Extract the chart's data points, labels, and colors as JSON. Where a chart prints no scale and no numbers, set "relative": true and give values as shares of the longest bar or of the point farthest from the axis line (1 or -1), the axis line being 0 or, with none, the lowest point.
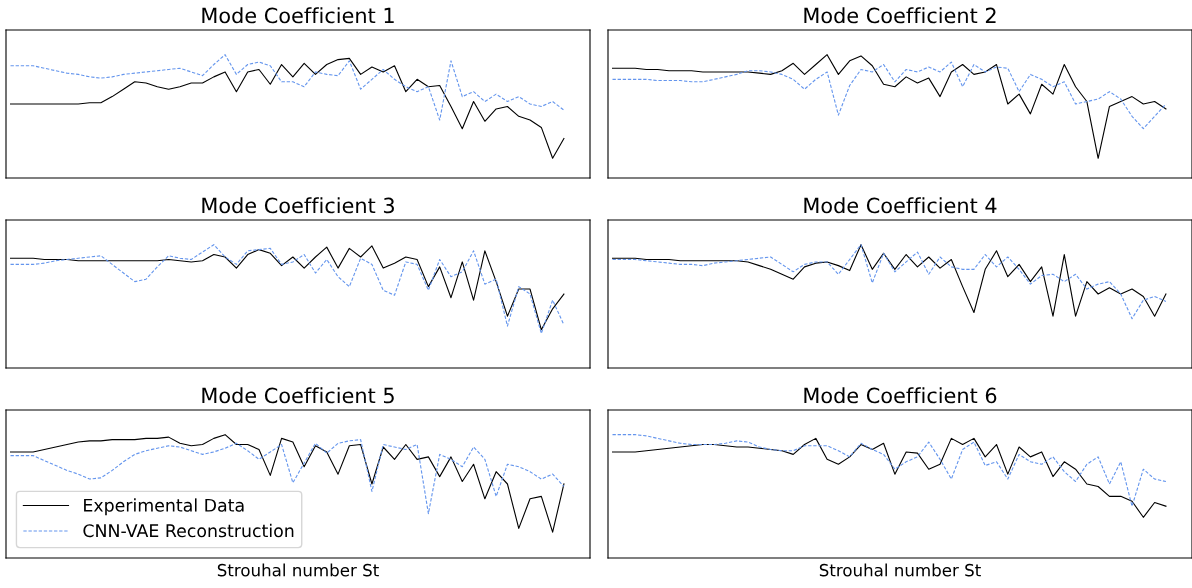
{
  "chart_data": [
    {
      "type": "line",
      "title": "Mode Coefficient 1",
      "relative": true,
      "tick_labels": false,
      "grid": false,
      "legend": false,
      "categories": [
        null,
        null,
        null,
        null,
        null,
        null,
        null,
        null,
        null,
        null,
        null,
        null,
        null,
        null,
        null,
        null,
        null,
        null,
        null,
        null,
        null,
        null,
        null,
        null,
        null,
        null,
        null,
        null,
        null,
        null,
        null,
        null,
        null,
        null,
        null,
        null,
        null,
        null,
        null,
        null,
        null,
        null,
        null,
        null,
        null,
        null,
        null,
        null,
        null,
        null
      ],
      "series": [
        {
          "color": "#000000",
          "line_style": "solid",
          "values": [
            0.6,
            0.6,
            0.6,
            0.6,
            0.6,
            0.6,
            0.6,
            0.61,
            0.61,
            0.66,
            0.72,
            0.78,
            0.77,
            0.74,
            0.72,
            0.74,
            0.77,
            0.77,
            0.82,
            0.86,
            0.7,
            0.86,
            0.88,
            0.76,
            0.92,
            0.82,
            0.93,
            0.84,
            0.92,
            0.96,
            0.97,
            0.84,
            0.9,
            0.86,
            0.91,
            0.7,
            0.8,
            0.74,
            0.75,
            0.58,
            0.4,
            0.62,
            0.46,
            0.56,
            0.58,
            0.5,
            0.47,
            0.41,
            0.16,
            0.32
          ]
        },
        {
          "color": "#6495ed",
          "line_style": "dashed",
          "values": [
            0.91,
            0.91,
            0.91,
            0.89,
            0.87,
            0.85,
            0.84,
            0.82,
            0.81,
            0.82,
            0.84,
            0.85,
            0.86,
            0.87,
            0.88,
            0.89,
            0.86,
            0.83,
            0.92,
            1.0,
            0.84,
            0.92,
            0.94,
            0.91,
            0.78,
            0.78,
            0.74,
            0.86,
            0.84,
            0.83,
            0.95,
            0.72,
            0.8,
            0.88,
            0.8,
            0.74,
            0.7,
            0.74,
            0.47,
            0.95,
            0.66,
            0.7,
            0.62,
            0.68,
            0.62,
            0.66,
            0.6,
            0.58,
            0.62,
            0.55
          ]
        }
      ]
    },
    {
      "type": "line",
      "title": "Mode Coefficient 2",
      "relative": true,
      "tick_labels": false,
      "grid": false,
      "legend": false,
      "categories": [
        null,
        null,
        null,
        null,
        null,
        null,
        null,
        null,
        null,
        null,
        null,
        null,
        null,
        null,
        null,
        null,
        null,
        null,
        null,
        null,
        null,
        null,
        null,
        null,
        null,
        null,
        null,
        null,
        null,
        null,
        null,
        null,
        null,
        null,
        null,
        null,
        null,
        null,
        null,
        null,
        null,
        null,
        null,
        null,
        null,
        null,
        null,
        null,
        null,
        null
      ],
      "series": [
        {
          "color": "#000000",
          "line_style": "solid",
          "values": [
            0.89,
            0.89,
            0.89,
            0.88,
            0.88,
            0.87,
            0.87,
            0.87,
            0.86,
            0.86,
            0.86,
            0.86,
            0.86,
            0.85,
            0.84,
            0.87,
            0.93,
            0.84,
            0.92,
            1.0,
            0.84,
            0.95,
            0.99,
            0.91,
            0.76,
            0.74,
            0.82,
            0.77,
            0.81,
            0.66,
            0.86,
            0.92,
            0.84,
            0.86,
            0.92,
            0.6,
            0.68,
            0.52,
            0.76,
            0.68,
            0.92,
            0.74,
            0.62,
            0.16,
            0.58,
            0.62,
            0.66,
            0.6,
            0.62,
            0.56
          ]
        },
        {
          "color": "#6495ed",
          "line_style": "dashed",
          "values": [
            0.8,
            0.8,
            0.8,
            0.8,
            0.79,
            0.79,
            0.79,
            0.78,
            0.78,
            0.8,
            0.82,
            0.84,
            0.87,
            0.87,
            0.86,
            0.84,
            0.8,
            0.72,
            0.8,
            0.86,
            0.51,
            0.75,
            0.88,
            0.86,
            0.92,
            0.78,
            0.88,
            0.86,
            0.9,
            0.86,
            0.94,
            0.74,
            0.92,
            0.86,
            0.9,
            0.89,
            0.7,
            0.84,
            0.8,
            0.74,
            0.78,
            0.6,
            0.62,
            0.64,
            0.7,
            0.64,
            0.5,
            0.4,
            0.5,
            0.6
          ]
        }
      ]
    },
    {
      "type": "line",
      "title": "Mode Coefficient 3",
      "relative": true,
      "tick_labels": false,
      "grid": false,
      "legend": false,
      "categories": [
        null,
        null,
        null,
        null,
        null,
        null,
        null,
        null,
        null,
        null,
        null,
        null,
        null,
        null,
        null,
        null,
        null,
        null,
        null,
        null,
        null,
        null,
        null,
        null,
        null,
        null,
        null,
        null,
        null,
        null,
        null,
        null,
        null,
        null,
        null,
        null,
        null,
        null,
        null,
        null,
        null,
        null,
        null,
        null,
        null,
        null,
        null,
        null,
        null,
        null
      ],
      "series": [
        {
          "color": "#000000",
          "line_style": "solid",
          "values": [
            0.89,
            0.89,
            0.89,
            0.88,
            0.88,
            0.88,
            0.87,
            0.87,
            0.87,
            0.87,
            0.87,
            0.87,
            0.87,
            0.87,
            0.88,
            0.87,
            0.86,
            0.87,
            0.92,
            0.9,
            0.81,
            0.92,
            0.96,
            0.93,
            0.83,
            0.9,
            0.81,
            0.9,
            0.98,
            0.81,
            0.97,
            0.9,
            0.99,
            0.81,
            0.85,
            0.9,
            0.88,
            0.66,
            0.82,
            0.57,
            0.86,
            0.55,
            0.95,
            0.7,
            0.42,
            0.64,
            0.64,
            0.31,
            0.48,
            0.6
          ]
        },
        {
          "color": "#6495ed",
          "line_style": "dashed",
          "values": [
            0.84,
            0.84,
            0.84,
            0.85,
            0.87,
            0.88,
            0.89,
            0.9,
            0.91,
            0.84,
            0.77,
            0.7,
            0.72,
            0.82,
            0.91,
            0.89,
            0.88,
            0.94,
            1.0,
            0.9,
            0.84,
            0.95,
            0.96,
            0.97,
            0.84,
            0.86,
            0.92,
            0.77,
            0.88,
            0.74,
            0.66,
            0.89,
            0.84,
            0.63,
            0.59,
            0.86,
            0.84,
            0.63,
            0.88,
            0.74,
            0.78,
            0.95,
            0.68,
            0.72,
            0.34,
            0.66,
            0.6,
            0.28,
            0.55,
            0.35
          ]
        }
      ]
    },
    {
      "type": "line",
      "title": "Mode Coefficient 4",
      "relative": true,
      "tick_labels": false,
      "grid": false,
      "legend": false,
      "categories": [
        null,
        null,
        null,
        null,
        null,
        null,
        null,
        null,
        null,
        null,
        null,
        null,
        null,
        null,
        null,
        null,
        null,
        null,
        null,
        null,
        null,
        null,
        null,
        null,
        null,
        null,
        null,
        null,
        null,
        null,
        null,
        null,
        null,
        null,
        null,
        null,
        null,
        null,
        null,
        null,
        null,
        null,
        null,
        null,
        null,
        null,
        null,
        null,
        null,
        null
      ],
      "series": [
        {
          "color": "#000000",
          "line_style": "solid",
          "values": [
            0.89,
            0.89,
            0.89,
            0.88,
            0.88,
            0.88,
            0.87,
            0.87,
            0.87,
            0.87,
            0.87,
            0.87,
            0.86,
            0.83,
            0.8,
            0.76,
            0.72,
            0.82,
            0.85,
            0.86,
            0.83,
            0.79,
            1.0,
            0.8,
            0.93,
            0.8,
            0.92,
            0.82,
            0.9,
            0.81,
            0.88,
            0.66,
            0.45,
            0.8,
            0.95,
            0.74,
            0.84,
            0.7,
            0.82,
            0.42,
            0.92,
            0.42,
            0.7,
            0.6,
            0.65,
            0.6,
            0.64,
            0.58,
            0.42,
            0.6
          ]
        },
        {
          "color": "#6495ed",
          "line_style": "dashed",
          "values": [
            0.88,
            0.88,
            0.88,
            0.87,
            0.86,
            0.85,
            0.84,
            0.84,
            0.83,
            0.85,
            0.86,
            0.87,
            0.88,
            0.89,
            0.9,
            0.84,
            0.78,
            0.84,
            0.86,
            0.86,
            0.76,
            0.88,
            1.0,
            0.69,
            0.93,
            0.78,
            0.86,
            0.94,
            0.76,
            0.9,
            0.82,
            0.8,
            0.8,
            0.92,
            0.82,
            0.9,
            0.8,
            0.68,
            0.75,
            0.76,
            0.7,
            0.76,
            0.64,
            0.68,
            0.7,
            0.6,
            0.4,
            0.55,
            0.58,
            0.54
          ]
        }
      ]
    },
    {
      "type": "line",
      "title": "Mode Coefficient 5",
      "xlabel": "Strouhal number St",
      "relative": true,
      "tick_labels": false,
      "grid": false,
      "legend": "bottom left",
      "categories": [
        null,
        null,
        null,
        null,
        null,
        null,
        null,
        null,
        null,
        null,
        null,
        null,
        null,
        null,
        null,
        null,
        null,
        null,
        null,
        null,
        null,
        null,
        null,
        null,
        null,
        null,
        null,
        null,
        null,
        null,
        null,
        null,
        null,
        null,
        null,
        null,
        null,
        null,
        null,
        null,
        null,
        null,
        null,
        null,
        null,
        null,
        null,
        null,
        null,
        null
      ],
      "series": [
        {
          "name": "Experimental Data",
          "color": "#000000",
          "line_style": "solid",
          "values": [
            0.86,
            0.86,
            0.86,
            0.88,
            0.9,
            0.92,
            0.94,
            0.95,
            0.95,
            0.96,
            0.96,
            0.96,
            0.97,
            0.97,
            0.98,
            0.93,
            0.91,
            0.92,
            0.97,
            1.0,
            0.92,
            0.92,
            0.88,
            0.67,
            0.97,
            0.94,
            0.74,
            0.91,
            0.86,
            0.68,
            0.91,
            0.92,
            0.6,
            0.9,
            0.8,
            0.92,
            0.8,
            0.82,
            0.66,
            0.82,
            0.62,
            0.76,
            0.48,
            0.7,
            0.6,
            0.24,
            0.48,
            0.5,
            0.21,
            0.6
          ]
        },
        {
          "name": "CNN-VAE Reconstruction",
          "color": "#6495ed",
          "line_style": "dashed",
          "values": [
            0.83,
            0.83,
            0.83,
            0.79,
            0.75,
            0.71,
            0.68,
            0.64,
            0.65,
            0.71,
            0.78,
            0.84,
            0.87,
            0.89,
            0.91,
            0.9,
            0.87,
            0.84,
            0.86,
            0.89,
            0.93,
            0.87,
            0.8,
            0.86,
            0.92,
            0.61,
            0.77,
            0.93,
            0.85,
            0.93,
            0.95,
            0.96,
            0.54,
            0.92,
            0.9,
            0.88,
            0.92,
            0.36,
            0.84,
            0.8,
            0.74,
            0.9,
            0.8,
            0.5,
            0.76,
            0.74,
            0.7,
            0.64,
            0.68,
            0.58
          ]
        }
      ]
    },
    {
      "type": "line",
      "title": "Mode Coefficient 6",
      "xlabel": "Strouhal number St",
      "relative": true,
      "tick_labels": false,
      "grid": false,
      "legend": false,
      "categories": [
        null,
        null,
        null,
        null,
        null,
        null,
        null,
        null,
        null,
        null,
        null,
        null,
        null,
        null,
        null,
        null,
        null,
        null,
        null,
        null,
        null,
        null,
        null,
        null,
        null,
        null,
        null,
        null,
        null,
        null,
        null,
        null,
        null,
        null,
        null,
        null,
        null,
        null,
        null,
        null,
        null,
        null,
        null,
        null,
        null,
        null,
        null,
        null,
        null,
        null
      ],
      "series": [
        {
          "color": "#000000",
          "line_style": "solid",
          "values": [
            0.86,
            0.86,
            0.86,
            0.87,
            0.88,
            0.89,
            0.9,
            0.91,
            0.92,
            0.92,
            0.91,
            0.9,
            0.9,
            0.89,
            0.88,
            0.87,
            0.84,
            0.92,
            0.97,
            0.8,
            0.76,
            0.82,
            0.92,
            0.88,
            0.93,
            0.68,
            0.86,
            0.85,
            0.72,
            0.76,
            0.97,
            0.92,
            0.97,
            0.82,
            0.92,
            0.68,
            0.9,
            0.82,
            0.86,
            0.66,
            0.78,
            0.72,
            0.6,
            0.58,
            0.5,
            0.5,
            0.46,
            0.33,
            0.45,
            0.42
          ]
        },
        {
          "color": "#6495ed",
          "line_style": "dashed",
          "values": [
            1.0,
            1.0,
            1.0,
            0.99,
            0.97,
            0.95,
            0.93,
            0.92,
            0.92,
            0.92,
            0.93,
            0.95,
            0.94,
            0.9,
            0.88,
            0.87,
            0.87,
            0.91,
            0.91,
            0.91,
            0.87,
            0.82,
            0.93,
            0.88,
            0.84,
            0.72,
            0.78,
            0.82,
            0.94,
            0.8,
            0.64,
            0.88,
            0.94,
            0.75,
            0.78,
            0.64,
            0.84,
            0.78,
            0.76,
            0.82,
            0.7,
            0.62,
            0.76,
            0.82,
            0.6,
            0.78,
            0.42,
            0.72,
            0.64,
            0.62
          ]
        }
      ]
    }
  ]
}
